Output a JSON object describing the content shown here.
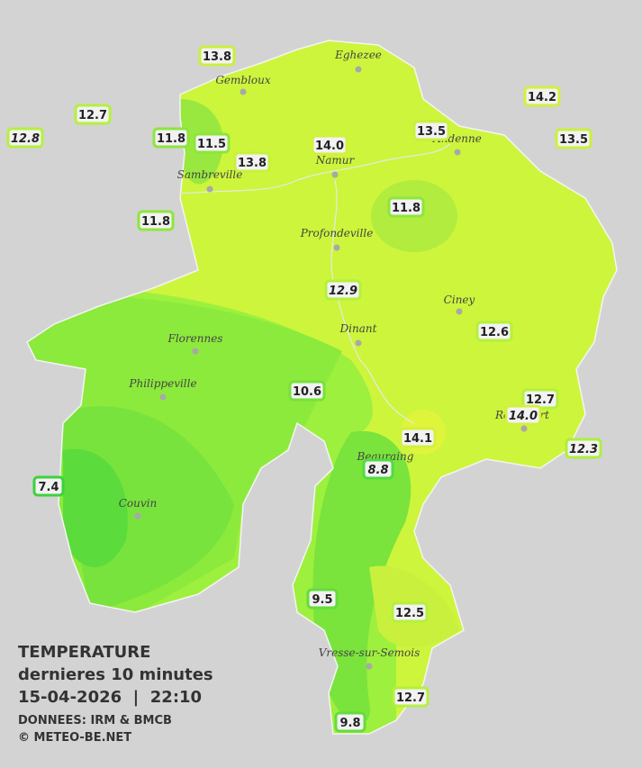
{
  "legend": {
    "title": "TEMPERATURE",
    "subtitle": "dernieres 10 minutes",
    "timestamp": "15-04-2026  |  22:10",
    "source": "DONNEES: IRM & BMCB",
    "credit": "© METEO-BE.NET"
  },
  "towns": [
    "Eghezee",
    "Gembloux",
    "Andenne",
    "Namur",
    "Sambreville",
    "Profondeville",
    "Ciney",
    "Dinant",
    "Florennes",
    "Philippeville",
    "Rochefort",
    "Beauraing",
    "Couvin",
    "Vresse-sur-Semois"
  ],
  "stations": [
    {
      "temp": "13.8",
      "color": "#c8f03c"
    },
    {
      "temp": "12.7",
      "color": "#b4f03c"
    },
    {
      "temp": "12.8",
      "color": "#b4f03c",
      "italic": true
    },
    {
      "temp": "11.8",
      "color": "#8ce63c"
    },
    {
      "temp": "11.5",
      "color": "#8ce63c"
    },
    {
      "temp": "13.8",
      "color": "#c8f03c"
    },
    {
      "temp": "14.0",
      "color": "#d2f03c"
    },
    {
      "temp": "13.5",
      "color": "#c8f03c"
    },
    {
      "temp": "14.2",
      "color": "#d2f03c"
    },
    {
      "temp": "13.5",
      "color": "#c8f03c"
    },
    {
      "temp": "11.8",
      "color": "#8ce63c"
    },
    {
      "temp": "11.8",
      "color": "#8ce63c"
    },
    {
      "temp": "12.9",
      "color": "#b4f03c",
      "italic": true
    },
    {
      "temp": "12.6",
      "color": "#b4f03c"
    },
    {
      "temp": "10.6",
      "color": "#78e03c"
    },
    {
      "temp": "12.7",
      "color": "#b4f03c"
    },
    {
      "temp": "14.0",
      "color": "#d2f03c",
      "italic": true
    },
    {
      "temp": "14.1",
      "color": "#d2f03c"
    },
    {
      "temp": "12.3",
      "color": "#aaf03c",
      "italic": true
    },
    {
      "temp": "8.8",
      "color": "#50dc3c",
      "italic": true
    },
    {
      "temp": "7.4",
      "color": "#3cd23c"
    },
    {
      "temp": "9.5",
      "color": "#64dc3c"
    },
    {
      "temp": "12.5",
      "color": "#b4f03c"
    },
    {
      "temp": "12.7",
      "color": "#b4f03c"
    },
    {
      "temp": "9.8",
      "color": "#64dc3c"
    }
  ]
}
